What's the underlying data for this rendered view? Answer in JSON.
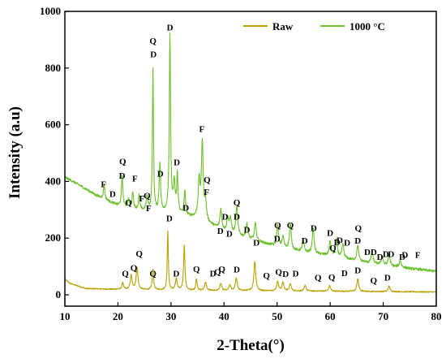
{
  "chart_data": {
    "type": "line",
    "xlabel": "2-Theta(°)",
    "ylabel": "Intensity (a.u)",
    "xlim": [
      10,
      80
    ],
    "ylim": [
      -40,
      1000
    ],
    "xticks": [
      10,
      20,
      30,
      40,
      50,
      60,
      70,
      80
    ],
    "xtick_labels": [
      "10",
      "20",
      "30",
      "40",
      "50",
      "60",
      "70",
      "80"
    ],
    "yticks": [
      0,
      200,
      400,
      600,
      800,
      1000
    ],
    "ytick_labels": [
      "0",
      "200",
      "400",
      "600",
      "800",
      "1000"
    ],
    "grid": false,
    "legend_position": "top-right",
    "series": [
      {
        "name": "Raw",
        "color": "#b8a000",
        "peak_color": "#e08a00",
        "baseline": [
          [
            10,
            55
          ],
          [
            11,
            40
          ],
          [
            14,
            22
          ],
          [
            18,
            20
          ],
          [
            25,
            18
          ],
          [
            35,
            15
          ],
          [
            50,
            14
          ],
          [
            65,
            12
          ],
          [
            80,
            10
          ]
        ],
        "peaks": [
          [
            20.9,
            25,
            0.15
          ],
          [
            22.5,
            50,
            0.2
          ],
          [
            23.6,
            78,
            0.2
          ],
          [
            26.6,
            70,
            0.15
          ],
          [
            29.4,
            210,
            0.12
          ],
          [
            31.0,
            40,
            0.2
          ],
          [
            32.5,
            160,
            0.15
          ],
          [
            34.8,
            40,
            0.15
          ],
          [
            36.5,
            30,
            0.2
          ],
          [
            39.4,
            25,
            0.2
          ],
          [
            41.1,
            20,
            0.2
          ],
          [
            42.3,
            45,
            0.2
          ],
          [
            45.8,
            105,
            0.2
          ],
          [
            50.1,
            35,
            0.2
          ],
          [
            51.1,
            30,
            0.2
          ],
          [
            52.5,
            25,
            0.2
          ],
          [
            55.3,
            20,
            0.2
          ],
          [
            59.9,
            20,
            0.2
          ],
          [
            65.2,
            45,
            0.2
          ],
          [
            71.1,
            20,
            0.2
          ]
        ]
      },
      {
        "name": "1000 °C",
        "color": "#6bbf2a",
        "peak_color": "#6bbf2a",
        "baseline": [
          [
            10,
            415
          ],
          [
            12,
            395
          ],
          [
            16,
            350
          ],
          [
            20,
            315
          ],
          [
            25,
            295
          ],
          [
            30,
            290
          ],
          [
            35,
            270
          ],
          [
            40,
            225
          ],
          [
            45,
            195
          ],
          [
            50,
            170
          ],
          [
            55,
            150
          ],
          [
            60,
            138
          ],
          [
            65,
            120
          ],
          [
            70,
            105
          ],
          [
            75,
            93
          ],
          [
            80,
            83
          ]
        ],
        "peaks": [
          [
            17.4,
            50,
            0.15
          ],
          [
            20.8,
            110,
            0.15
          ],
          [
            22.0,
            30,
            0.15
          ],
          [
            22.8,
            60,
            0.15
          ],
          [
            24.0,
            50,
            0.15
          ],
          [
            25.5,
            50,
            0.2
          ],
          [
            26.6,
            500,
            0.12
          ],
          [
            27.9,
            170,
            0.15
          ],
          [
            29.8,
            620,
            0.14
          ],
          [
            30.6,
            100,
            0.2
          ],
          [
            31.2,
            135,
            0.15
          ],
          [
            32.6,
            85,
            0.15
          ],
          [
            35.3,
            130,
            0.2
          ],
          [
            35.9,
            270,
            0.2
          ],
          [
            36.5,
            65,
            0.2
          ],
          [
            39.4,
            70,
            0.2
          ],
          [
            40.7,
            50,
            0.2
          ],
          [
            41.2,
            50,
            0.2
          ],
          [
            42.4,
            100,
            0.2
          ],
          [
            44.3,
            50,
            0.2
          ],
          [
            45.9,
            60,
            0.2
          ],
          [
            50.1,
            75,
            0.2
          ],
          [
            51.1,
            40,
            0.2
          ],
          [
            52.5,
            90,
            0.2
          ],
          [
            54.9,
            45,
            0.2
          ],
          [
            56.8,
            90,
            0.2
          ],
          [
            60.0,
            50,
            0.2
          ],
          [
            61.2,
            60,
            0.2
          ],
          [
            62.4,
            50,
            0.2
          ],
          [
            65.2,
            55,
            0.2
          ],
          [
            67.9,
            40,
            0.2
          ],
          [
            69.8,
            30,
            0.2
          ],
          [
            71.1,
            40,
            0.2
          ],
          [
            73.2,
            25,
            0.2
          ]
        ]
      }
    ],
    "annotations": [
      {
        "text": "F",
        "x": 17.3,
        "y": 380
      },
      {
        "text": "D",
        "x": 19.0,
        "y": 345
      },
      {
        "text": "Q",
        "x": 20.9,
        "y": 460
      },
      {
        "text": "D",
        "x": 20.8,
        "y": 410
      },
      {
        "text": "Q",
        "x": 22.0,
        "y": 315
      },
      {
        "text": "F",
        "x": 23.2,
        "y": 400
      },
      {
        "text": "F",
        "x": 24.5,
        "y": 330
      },
      {
        "text": "Q",
        "x": 25.5,
        "y": 340
      },
      {
        "text": "F",
        "x": 25.8,
        "y": 295
      },
      {
        "text": "Q",
        "x": 26.6,
        "y": 885
      },
      {
        "text": "D",
        "x": 26.7,
        "y": 838
      },
      {
        "text": "D",
        "x": 28.0,
        "y": 417
      },
      {
        "text": "D",
        "x": 29.8,
        "y": 933
      },
      {
        "text": "D",
        "x": 31.1,
        "y": 457
      },
      {
        "text": "D",
        "x": 32.8,
        "y": 297
      },
      {
        "text": "F",
        "x": 35.8,
        "y": 575
      },
      {
        "text": "Q",
        "x": 36.8,
        "y": 395
      },
      {
        "text": "F",
        "x": 36.7,
        "y": 353
      },
      {
        "text": "D",
        "x": 39.3,
        "y": 215
      },
      {
        "text": "D",
        "x": 40.2,
        "y": 265
      },
      {
        "text": "D",
        "x": 41.0,
        "y": 205
      },
      {
        "text": "Q",
        "x": 42.4,
        "y": 315
      },
      {
        "text": "D",
        "x": 42.4,
        "y": 265
      },
      {
        "text": "D",
        "x": 44.3,
        "y": 220
      },
      {
        "text": "D",
        "x": 46.1,
        "y": 173
      },
      {
        "text": "Q",
        "x": 50.1,
        "y": 235
      },
      {
        "text": "D",
        "x": 50.0,
        "y": 188
      },
      {
        "text": "Q",
        "x": 52.5,
        "y": 235
      },
      {
        "text": "D",
        "x": 55.2,
        "y": 180
      },
      {
        "text": "D",
        "x": 56.9,
        "y": 225
      },
      {
        "text": "D",
        "x": 60.0,
        "y": 208
      },
      {
        "text": "D",
        "x": 61.3,
        "y": 175
      },
      {
        "text": "Q",
        "x": 60.5,
        "y": 155
      },
      {
        "text": "D",
        "x": 61.8,
        "y": 182
      },
      {
        "text": "D",
        "x": 63.2,
        "y": 174
      },
      {
        "text": "Q",
        "x": 65.3,
        "y": 225
      },
      {
        "text": "D",
        "x": 65.2,
        "y": 180
      },
      {
        "text": "D",
        "x": 67.0,
        "y": 140
      },
      {
        "text": "D",
        "x": 68.2,
        "y": 140
      },
      {
        "text": "D",
        "x": 69.4,
        "y": 124
      },
      {
        "text": "D",
        "x": 70.5,
        "y": 134
      },
      {
        "text": "D",
        "x": 71.5,
        "y": 134
      },
      {
        "text": "D",
        "x": 73.6,
        "y": 124
      },
      {
        "text": "D",
        "x": 74.1,
        "y": 130
      },
      {
        "text": "F",
        "x": 76.5,
        "y": 130
      },
      {
        "text": "Q",
        "x": 21.4,
        "y": 64
      },
      {
        "text": "Q",
        "x": 23.0,
        "y": 85
      },
      {
        "text": "Q",
        "x": 24.0,
        "y": 135
      },
      {
        "text": "Q",
        "x": 26.6,
        "y": 65
      },
      {
        "text": "D",
        "x": 29.7,
        "y": 260
      },
      {
        "text": "D",
        "x": 31.0,
        "y": 64
      },
      {
        "text": "Q",
        "x": 34.8,
        "y": 80
      },
      {
        "text": "D",
        "x": 37.9,
        "y": 65
      },
      {
        "text": "Q",
        "x": 38.8,
        "y": 70
      },
      {
        "text": "Q",
        "x": 39.6,
        "y": 80
      },
      {
        "text": "D",
        "x": 42.4,
        "y": 79
      },
      {
        "text": "Q",
        "x": 48.0,
        "y": 57
      },
      {
        "text": "Q",
        "x": 50.3,
        "y": 70
      },
      {
        "text": "D",
        "x": 51.6,
        "y": 63
      },
      {
        "text": "D",
        "x": 53.5,
        "y": 65
      },
      {
        "text": "Q",
        "x": 57.7,
        "y": 50
      },
      {
        "text": "Q",
        "x": 60.3,
        "y": 51
      },
      {
        "text": "D",
        "x": 62.7,
        "y": 66
      },
      {
        "text": "D",
        "x": 65.2,
        "y": 76
      },
      {
        "text": "Q",
        "x": 68.2,
        "y": 40
      },
      {
        "text": "D",
        "x": 70.8,
        "y": 50
      }
    ]
  }
}
